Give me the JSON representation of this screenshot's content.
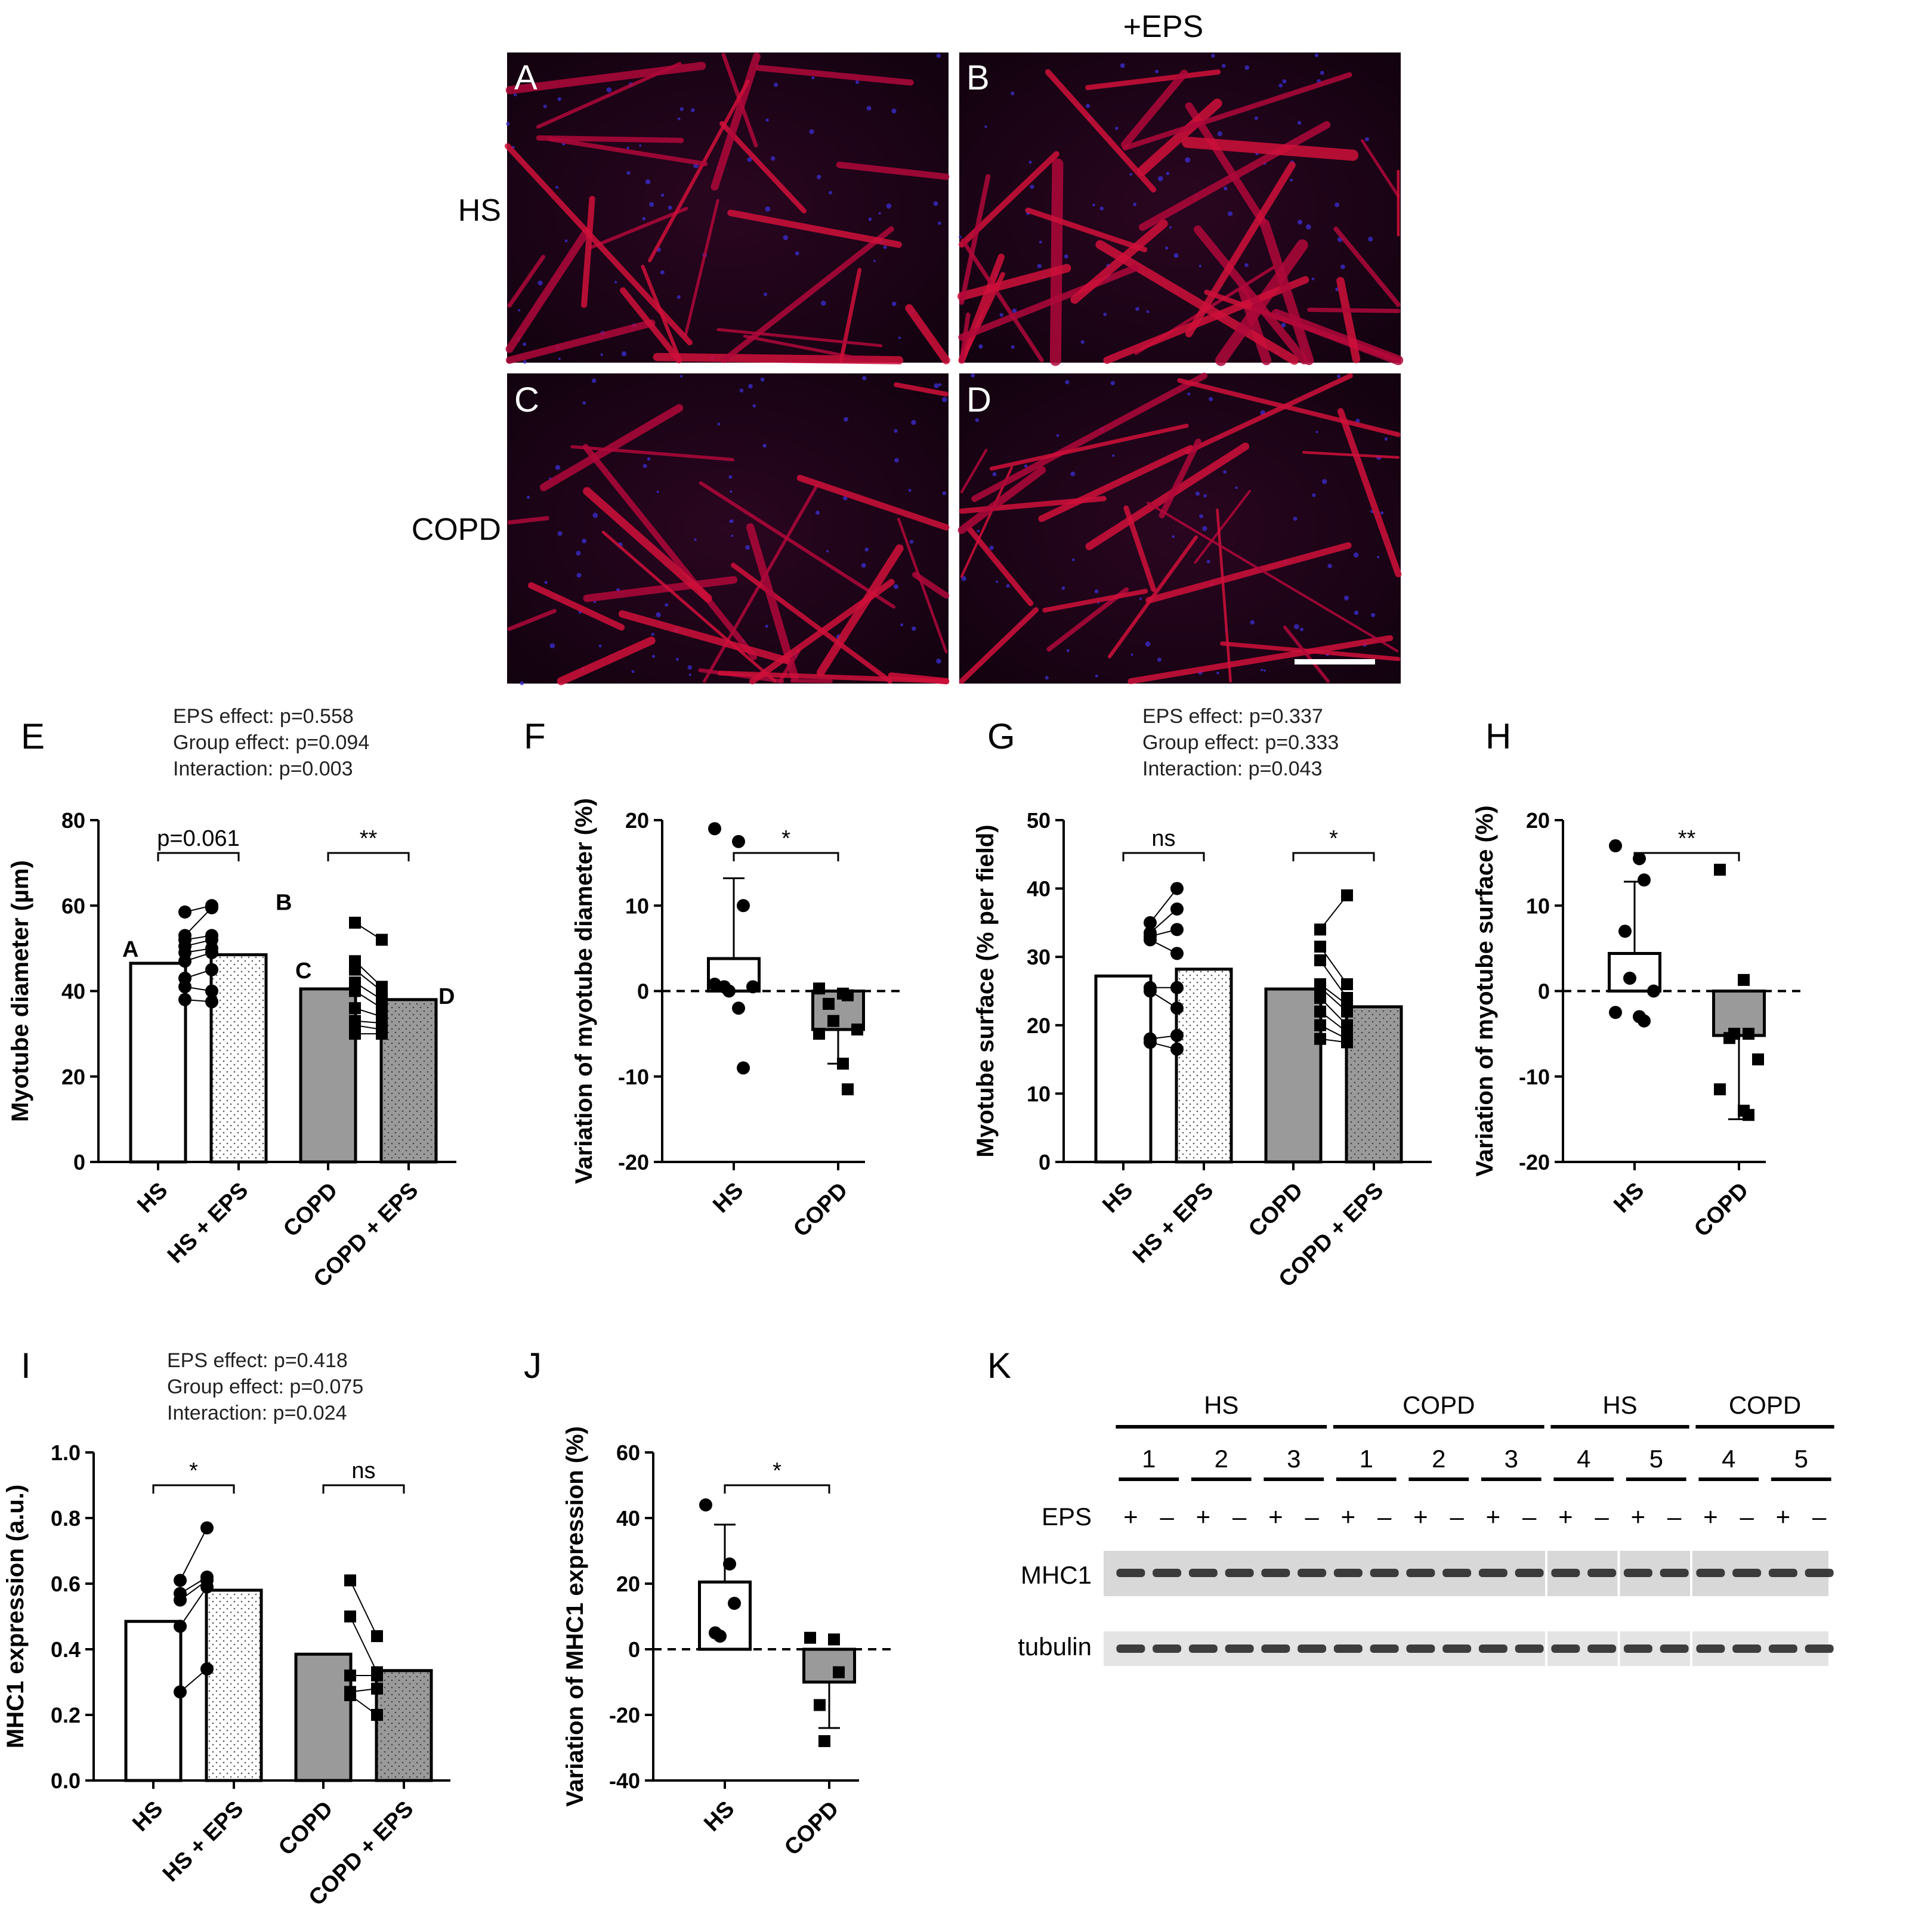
{
  "micrographs": {
    "column_header": "+EPS",
    "row_labels": [
      "HS",
      "COPD"
    ],
    "panels": [
      "A",
      "B",
      "C",
      "D"
    ]
  },
  "chart_data": [
    {
      "panel": "E",
      "type": "bar",
      "stats": [
        "EPS effect: p=0.558",
        "Group effect: p=0.094",
        "Interaction: p=0.003"
      ],
      "ylabel": "Myotube diameter (µm)",
      "ylim": [
        0,
        80
      ],
      "yticks": [
        0,
        20,
        40,
        60,
        80
      ],
      "categories": [
        "HS",
        "HS + EPS",
        "COPD",
        "COPD + EPS"
      ],
      "bar_fill": [
        "white",
        "dotted",
        "gray",
        "gray-dotted"
      ],
      "values": [
        46.5,
        48.5,
        40.5,
        38
      ],
      "points": [
        [
          38,
          41,
          43,
          47,
          49,
          50.5,
          52,
          53,
          58.5
        ],
        [
          37.5,
          40,
          45,
          49,
          50,
          52,
          53,
          59.5,
          60
        ],
        [
          30,
          32,
          33,
          36,
          40,
          42,
          45,
          47,
          56
        ],
        [
          30,
          31,
          32.5,
          34,
          36,
          38,
          40,
          41,
          52
        ]
      ],
      "point_markers": [
        "circle",
        "circle",
        "square",
        "square"
      ],
      "paired": true,
      "brackets": [
        {
          "from": 0,
          "to": 1,
          "label": "p=0.061"
        },
        {
          "from": 2,
          "to": 3,
          "label": "**"
        }
      ],
      "point_labels": [
        "A",
        "B",
        "C",
        "D"
      ]
    },
    {
      "panel": "F",
      "type": "bar",
      "ylabel": "Variation of myotube diameter (%)",
      "ylim": [
        -20,
        20
      ],
      "yticks": [
        -20,
        -10,
        0,
        10,
        20
      ],
      "categories": [
        "HS",
        "COPD"
      ],
      "bar_fill": [
        "white",
        "gray"
      ],
      "values": [
        3.8,
        -4.5
      ],
      "error": [
        [
          0,
          13.2
        ],
        [
          -8.5,
          0
        ]
      ],
      "points": [
        [
          19,
          17.5,
          10,
          0.5,
          0,
          0.5,
          0.8,
          -2,
          -9
        ],
        [
          0.3,
          -0.3,
          -0.5,
          -1.5,
          -3.5,
          -4.5,
          -5,
          -8.5,
          -11.5
        ]
      ],
      "point_markers": [
        "circle",
        "square"
      ],
      "brackets": [
        {
          "from": 0,
          "to": 1,
          "label": "*"
        }
      ]
    },
    {
      "panel": "G",
      "type": "bar",
      "stats": [
        "EPS effect: p=0.337",
        "Group effect: p=0.333",
        "Interaction: p=0.043"
      ],
      "ylabel": "Myotube surface (% per field)",
      "ylim": [
        0,
        50
      ],
      "yticks": [
        0,
        10,
        20,
        30,
        40,
        50
      ],
      "categories": [
        "HS",
        "HS + EPS",
        "COPD",
        "COPD + EPS"
      ],
      "bar_fill": [
        "white",
        "dotted",
        "gray",
        "gray-dotted"
      ],
      "values": [
        27.2,
        28.2,
        25.3,
        22.7
      ],
      "points": [
        [
          17.5,
          18,
          25,
          25.5,
          32.5,
          33,
          33.5,
          35
        ],
        [
          16.5,
          18.5,
          22.5,
          25.5,
          30.5,
          34,
          37,
          40
        ],
        [
          18,
          20,
          22,
          24,
          25.5,
          26,
          29.5,
          31.5,
          34
        ],
        [
          17.5,
          18,
          19,
          20,
          22,
          23,
          24,
          26,
          39
        ]
      ],
      "point_markers": [
        "circle",
        "circle",
        "square",
        "square"
      ],
      "paired": true,
      "brackets": [
        {
          "from": 0,
          "to": 1,
          "label": "ns"
        },
        {
          "from": 2,
          "to": 3,
          "label": "*"
        }
      ]
    },
    {
      "panel": "H",
      "type": "bar",
      "ylabel": "Variation of myotube surface (%)",
      "ylim": [
        -20,
        20
      ],
      "yticks": [
        -20,
        -10,
        0,
        10,
        20
      ],
      "categories": [
        "HS",
        "COPD"
      ],
      "bar_fill": [
        "white",
        "gray"
      ],
      "values": [
        4.4,
        -5.2
      ],
      "error": [
        [
          0,
          12.8
        ],
        [
          -15,
          0
        ]
      ],
      "points": [
        [
          17,
          15.5,
          13,
          7,
          1.5,
          0,
          -2.5,
          -3,
          -3.5
        ],
        [
          14.2,
          1.3,
          -5,
          -5.5,
          -5,
          -8,
          -11.5,
          -14,
          -14.5
        ]
      ],
      "point_markers": [
        "circle",
        "square"
      ],
      "brackets": [
        {
          "from": 0,
          "to": 1,
          "label": "**"
        }
      ]
    },
    {
      "panel": "I",
      "type": "bar",
      "stats": [
        "EPS effect: p=0.418",
        "Group effect: p=0.075",
        "Interaction: p=0.024"
      ],
      "ylabel": "MHC1 expression (a.u.)",
      "ylim": [
        0,
        1.0
      ],
      "yticks": [
        0.0,
        0.2,
        0.4,
        0.6,
        0.8,
        1.0
      ],
      "categories": [
        "HS",
        "HS + EPS",
        "COPD",
        "COPD + EPS"
      ],
      "bar_fill": [
        "white",
        "dotted",
        "gray",
        "gray-dotted"
      ],
      "values": [
        0.485,
        0.58,
        0.385,
        0.335
      ],
      "points": [
        [
          0.27,
          0.47,
          0.55,
          0.57,
          0.61
        ],
        [
          0.34,
          0.59,
          0.61,
          0.62,
          0.77
        ],
        [
          0.26,
          0.27,
          0.32,
          0.5,
          0.61
        ],
        [
          0.2,
          0.28,
          0.32,
          0.33,
          0.44
        ]
      ],
      "point_markers": [
        "circle",
        "circle",
        "square",
        "square"
      ],
      "paired": true,
      "brackets": [
        {
          "from": 0,
          "to": 1,
          "label": "*"
        },
        {
          "from": 2,
          "to": 3,
          "label": "ns"
        }
      ]
    },
    {
      "panel": "J",
      "type": "bar",
      "ylabel": "Variation of MHC1 expression (%)",
      "ylim": [
        -40,
        60
      ],
      "yticks": [
        -40,
        -20,
        0,
        20,
        40,
        60
      ],
      "categories": [
        "HS",
        "COPD"
      ],
      "bar_fill": [
        "white",
        "gray"
      ],
      "values": [
        20.5,
        -10
      ],
      "error": [
        [
          0,
          38
        ],
        [
          -24,
          0
        ]
      ],
      "points": [
        [
          44,
          26,
          14,
          5,
          4
        ],
        [
          3.5,
          3,
          -7,
          -17,
          -28
        ]
      ],
      "point_markers": [
        "circle",
        "square"
      ],
      "brackets": [
        {
          "from": 0,
          "to": 1,
          "label": "*"
        }
      ]
    }
  ],
  "western_blot": {
    "panel": "K",
    "groups": [
      "HS",
      "COPD",
      "HS",
      "COPD"
    ],
    "subjects": [
      "1",
      "2",
      "3",
      "1",
      "2",
      "3",
      "4",
      "5",
      "4",
      "5"
    ],
    "eps_label": "EPS",
    "eps_signs": [
      "+",
      "–"
    ],
    "row_labels": [
      "MHC1",
      "tubulin"
    ]
  }
}
